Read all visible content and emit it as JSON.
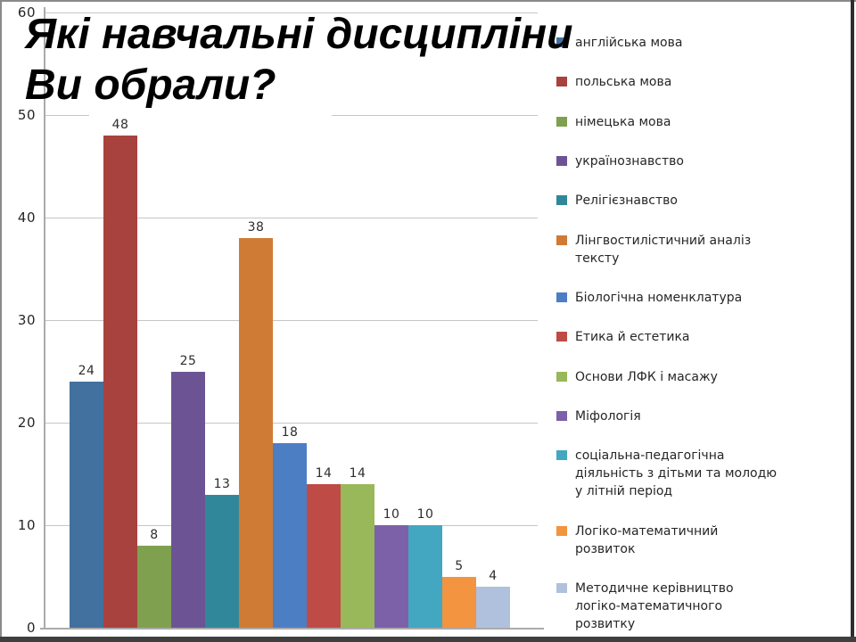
{
  "slide": {
    "background": "#ffffff",
    "frame_border_light": "#8a8a8a",
    "frame_border_dark": "#3f3f3f"
  },
  "chart_data": {
    "type": "bar",
    "title": "Які навчальні дисципліни Ви обрали?",
    "title_lines": [
      "Які навчальні дисципліни",
      "Ви обрали?"
    ],
    "xlabel": "",
    "ylabel": "",
    "ylim": [
      0,
      60
    ],
    "yticks": [
      0,
      10,
      20,
      30,
      40,
      50,
      60
    ],
    "grid": true,
    "legend_position": "right",
    "value_labels_shown": true,
    "category_axis_labels_shown": false,
    "colors": {
      "gridline": "#c6c6c6",
      "axis_line": "#ababab",
      "tick_label": "#262626",
      "value_label": "#2e2e2e",
      "title": "#000000",
      "legend_text": "#262626"
    },
    "series": [
      {
        "label": "англійська мова",
        "legend_label": "англійська мова",
        "value": 24,
        "color": "#42709f"
      },
      {
        "label": "польська мова",
        "legend_label": "польська мова",
        "value": 48,
        "color": "#a8423e"
      },
      {
        "label": "німецька мова",
        "legend_label": "німецька мова",
        "value": 8,
        "color": "#7fa04e"
      },
      {
        "label": "українознавство",
        "legend_label": "українознавство",
        "value": 25,
        "color": "#6c5494"
      },
      {
        "label": "Релігієзнавство",
        "legend_label": "Релігієзнавство",
        "value": 13,
        "color": "#31879a"
      },
      {
        "label": "Лінгвостилістичний аналіз тексту",
        "legend_label": "Лінгвостилістичний аналіз\nтексту",
        "value": 38,
        "color": "#d07b35"
      },
      {
        "label": "Біологічна номенклатура",
        "legend_label": "Біологічна номенклатура",
        "value": 18,
        "color": "#4c7ec4"
      },
      {
        "label": "Етика й естетика",
        "legend_label": "Етика й естетика",
        "value": 14,
        "color": "#be4b45"
      },
      {
        "label": "Основи ЛФК і масажу",
        "legend_label": "Основи ЛФК і масажу",
        "value": 14,
        "color": "#98b859"
      },
      {
        "label": "Міфологія",
        "legend_label": "Міфологія",
        "value": 10,
        "color": "#7c60a8"
      },
      {
        "label": "соціальна-педагогічна діяльність з дітьми та молодю у літній період",
        "legend_label": "соціальна-педагогічна\nдіяльність з дітьми та молодю\nу літній період",
        "value": 10,
        "color": "#43a7c2"
      },
      {
        "label": "Логіко-математичний розвиток",
        "legend_label": "Логіко-математичний\nрозвиток",
        "value": 5,
        "color": "#f29440"
      },
      {
        "label": "Методичне керівництво логіко-математичного розвитку",
        "legend_label": "Методичне керівництво\nлогіко-математичного\nрозвитку",
        "value": 4,
        "color": "#afc1dd"
      }
    ]
  }
}
